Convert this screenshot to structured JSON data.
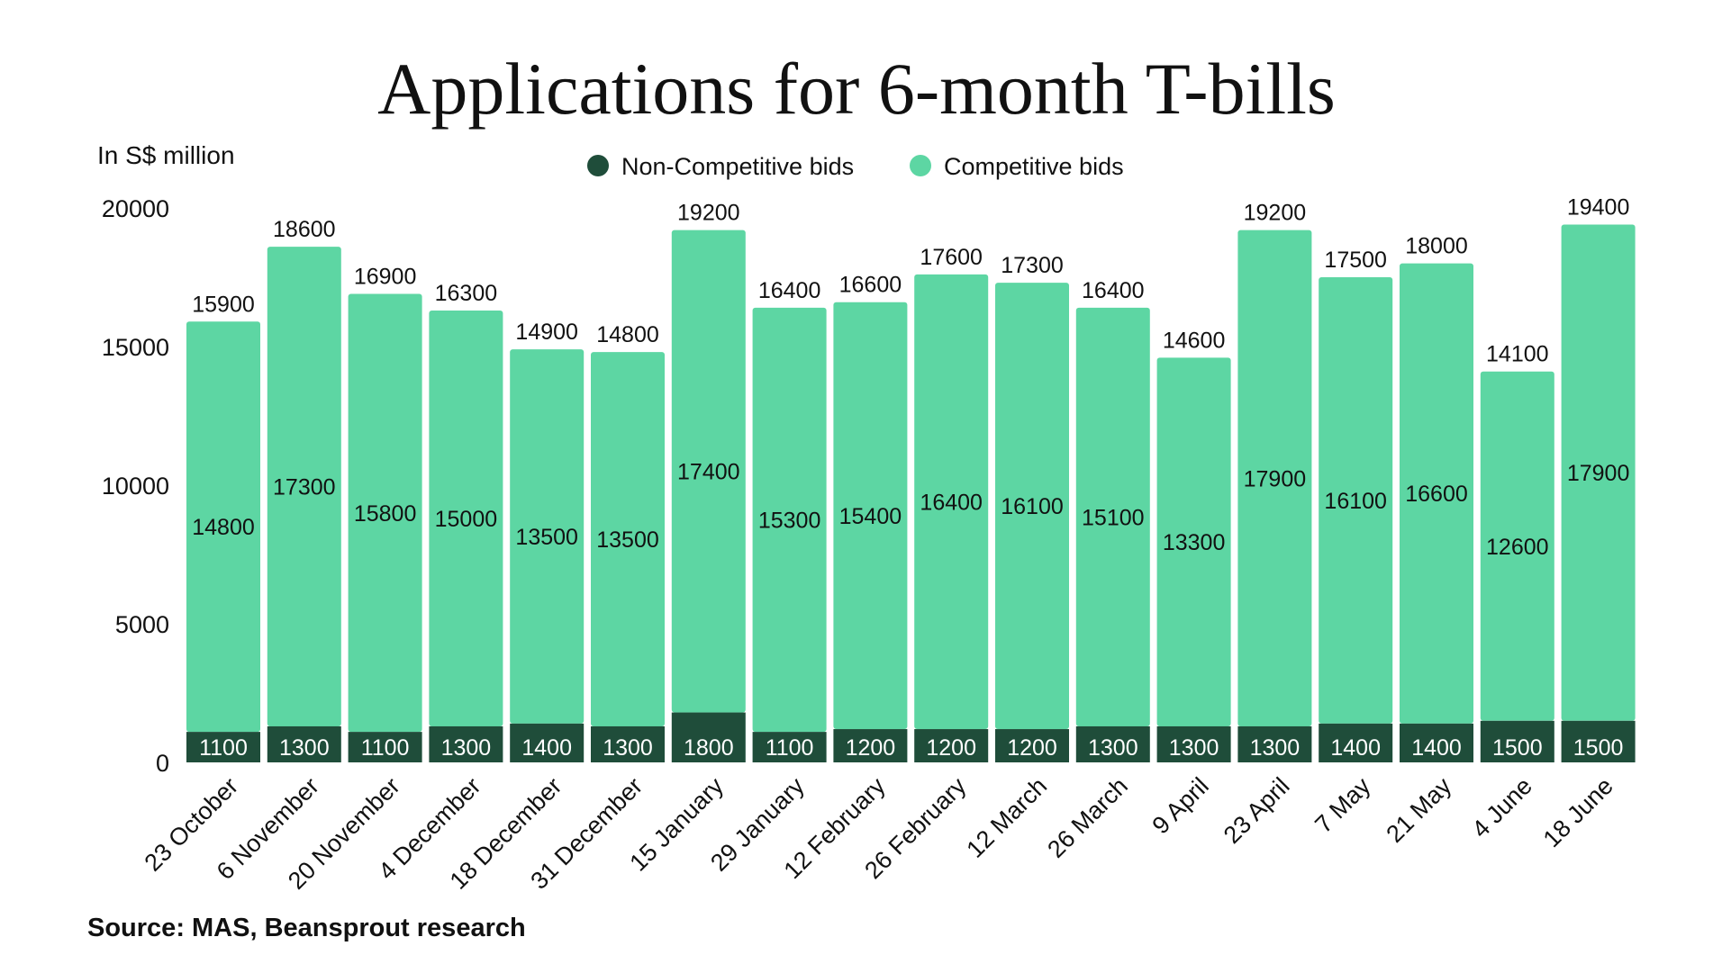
{
  "title": "Applications for 6-month T-bills",
  "unit_label": "In S$ million",
  "source": "Source: MAS, Beansprout research",
  "legend": [
    {
      "label": "Non-Competitive bids",
      "color": "#1f4d3a"
    },
    {
      "label": "Competitive bids",
      "color": "#5dd6a3"
    }
  ],
  "chart_data": {
    "type": "bar",
    "stacked": true,
    "categories": [
      "23 October",
      "6 November",
      "20 November",
      "4 December",
      "18 December",
      "31 December",
      "15 January",
      "29 January",
      "12 February",
      "26 February",
      "12 March",
      "26 March",
      "9 April",
      "23 April",
      "7 May",
      "21 May",
      "4 June",
      "18 June"
    ],
    "series": [
      {
        "name": "Non-Competitive bids",
        "color": "#1f4d3a",
        "values": [
          1100,
          1300,
          1100,
          1300,
          1400,
          1300,
          1800,
          1100,
          1200,
          1200,
          1200,
          1300,
          1300,
          1300,
          1400,
          1400,
          1500,
          1500
        ]
      },
      {
        "name": "Competitive bids",
        "color": "#5dd6a3",
        "values": [
          14800,
          17300,
          15800,
          15000,
          13500,
          13500,
          17400,
          15300,
          15400,
          16400,
          16100,
          15100,
          13300,
          17900,
          16100,
          16600,
          12600,
          17900
        ]
      }
    ],
    "totals": [
      15900,
      18600,
      16900,
      16300,
      14900,
      14800,
      19200,
      16400,
      16600,
      17600,
      17300,
      16400,
      14600,
      19200,
      17500,
      18000,
      14100,
      19400
    ],
    "ylabel": "In S$ million",
    "ylim": [
      0,
      20000
    ],
    "yticks": [
      0,
      5000,
      10000,
      15000,
      20000
    ],
    "grid": false,
    "legend_position": "top-center"
  }
}
